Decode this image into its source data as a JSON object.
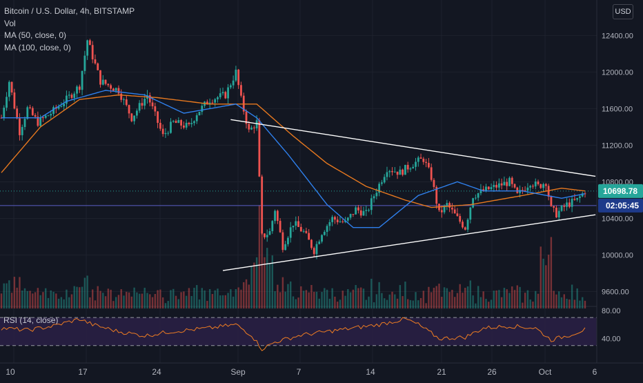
{
  "header": {
    "symbol_line": "Bitcoin / U.S. Dollar, 4h, BITSTAMP",
    "vol_label": "Vol",
    "ma50_label": "MA (50, close, 0)",
    "ma100_label": "MA (100, close, 0)",
    "currency_button": "USD"
  },
  "price_badges": {
    "last_price": "10698.78",
    "countdown": "02:05:45",
    "last_color": "#26a69a",
    "countdown_color": "#1e3a8a"
  },
  "rsi_label": "RSI (14, close)",
  "colors": {
    "up": "#26a69a",
    "down": "#ef5350",
    "ma50": "#2f80ed",
    "ma100": "#e8791f",
    "rsi_line": "#ef7d22",
    "rsi_band": "#2a2045",
    "trendline": "#ffffff"
  },
  "chart_data": {
    "type": "candlestick",
    "title": "Bitcoin / U.S. Dollar, 4h, BITSTAMP",
    "price_axis": {
      "ticks": [
        12400,
        12000,
        11600,
        11200,
        10800,
        10400,
        10000,
        9600
      ],
      "range": [
        9400,
        12750
      ],
      "labels": [
        "12400.00",
        "12000.00",
        "11600.00",
        "11200.00",
        "10800.00",
        "10400.00",
        "10000.00",
        "9600.00"
      ]
    },
    "time_axis_labels": [
      "10",
      "17",
      "24",
      "Sep",
      "7",
      "14",
      "21",
      "26",
      "Oct",
      "6"
    ],
    "keypoints": [
      {
        "t": 0,
        "p": 11500
      },
      {
        "t": 3,
        "p": 11900
      },
      {
        "t": 7,
        "p": 11350
      },
      {
        "t": 10,
        "p": 11600
      },
      {
        "t": 14,
        "p": 11450
      },
      {
        "t": 19,
        "p": 11550
      },
      {
        "t": 25,
        "p": 11700
      },
      {
        "t": 30,
        "p": 11850
      },
      {
        "t": 33,
        "p": 12350
      },
      {
        "t": 38,
        "p": 11900
      },
      {
        "t": 45,
        "p": 11800
      },
      {
        "t": 50,
        "p": 11500
      },
      {
        "t": 56,
        "p": 11750
      },
      {
        "t": 62,
        "p": 11300
      },
      {
        "t": 66,
        "p": 11450
      },
      {
        "t": 72,
        "p": 11400
      },
      {
        "t": 75,
        "p": 11550
      },
      {
        "t": 80,
        "p": 11700
      },
      {
        "t": 86,
        "p": 11750
      },
      {
        "t": 90,
        "p": 12000
      },
      {
        "t": 92,
        "p": 11700
      },
      {
        "t": 95,
        "p": 11350
      },
      {
        "t": 98,
        "p": 11450
      },
      {
        "t": 100,
        "p": 10200
      },
      {
        "t": 103,
        "p": 10250
      },
      {
        "t": 105,
        "p": 10500
      },
      {
        "t": 108,
        "p": 10100
      },
      {
        "t": 112,
        "p": 10350
      },
      {
        "t": 116,
        "p": 10250
      },
      {
        "t": 120,
        "p": 10050
      },
      {
        "t": 123,
        "p": 10250
      },
      {
        "t": 127,
        "p": 10400
      },
      {
        "t": 132,
        "p": 10350
      },
      {
        "t": 136,
        "p": 10500
      },
      {
        "t": 140,
        "p": 10450
      },
      {
        "t": 143,
        "p": 10650
      },
      {
        "t": 148,
        "p": 10950
      },
      {
        "t": 153,
        "p": 10900
      },
      {
        "t": 158,
        "p": 11000
      },
      {
        "t": 162,
        "p": 11050
      },
      {
        "t": 165,
        "p": 10850
      },
      {
        "t": 168,
        "p": 10450
      },
      {
        "t": 171,
        "p": 10550
      },
      {
        "t": 175,
        "p": 10400
      },
      {
        "t": 178,
        "p": 10300
      },
      {
        "t": 181,
        "p": 10650
      },
      {
        "t": 185,
        "p": 10700
      },
      {
        "t": 190,
        "p": 10750
      },
      {
        "t": 195,
        "p": 10800
      },
      {
        "t": 198,
        "p": 10650
      },
      {
        "t": 203,
        "p": 10800
      },
      {
        "t": 206,
        "p": 10750
      },
      {
        "t": 209,
        "p": 10800
      },
      {
        "t": 211,
        "p": 10500
      },
      {
        "t": 213,
        "p": 10450
      },
      {
        "t": 217,
        "p": 10550
      },
      {
        "t": 221,
        "p": 10600
      },
      {
        "t": 224,
        "p": 10700
      }
    ],
    "ma50_keypoints": [
      {
        "t": 0,
        "p": 11500
      },
      {
        "t": 15,
        "p": 11500
      },
      {
        "t": 25,
        "p": 11680
      },
      {
        "t": 40,
        "p": 11800
      },
      {
        "t": 55,
        "p": 11750
      },
      {
        "t": 70,
        "p": 11550
      },
      {
        "t": 90,
        "p": 11650
      },
      {
        "t": 98,
        "p": 11500
      },
      {
        "t": 110,
        "p": 11100
      },
      {
        "t": 125,
        "p": 10550
      },
      {
        "t": 135,
        "p": 10300
      },
      {
        "t": 145,
        "p": 10300
      },
      {
        "t": 160,
        "p": 10650
      },
      {
        "t": 175,
        "p": 10800
      },
      {
        "t": 185,
        "p": 10700
      },
      {
        "t": 200,
        "p": 10700
      },
      {
        "t": 215,
        "p": 10620
      },
      {
        "t": 224,
        "p": 10670
      }
    ],
    "ma100_keypoints": [
      {
        "t": 0,
        "p": 10900
      },
      {
        "t": 15,
        "p": 11400
      },
      {
        "t": 30,
        "p": 11700
      },
      {
        "t": 45,
        "p": 11750
      },
      {
        "t": 60,
        "p": 11720
      },
      {
        "t": 80,
        "p": 11650
      },
      {
        "t": 98,
        "p": 11650
      },
      {
        "t": 112,
        "p": 11300
      },
      {
        "t": 125,
        "p": 11000
      },
      {
        "t": 140,
        "p": 10750
      },
      {
        "t": 155,
        "p": 10600
      },
      {
        "t": 165,
        "p": 10520
      },
      {
        "t": 180,
        "p": 10550
      },
      {
        "t": 200,
        "p": 10650
      },
      {
        "t": 215,
        "p": 10730
      },
      {
        "t": 224,
        "p": 10700
      }
    ],
    "trendlines": [
      {
        "from": {
          "t": 88,
          "p": 11480
        },
        "to": {
          "t": 228,
          "p": 10860
        }
      },
      {
        "from": {
          "t": 85,
          "p": 9830
        },
        "to": {
          "t": 228,
          "p": 10440
        }
      }
    ],
    "horizontal_level": 10540,
    "last_price": 10698.78,
    "rsi": {
      "axis_ticks": [
        80,
        40
      ],
      "axis_labels": [
        "80.00",
        "40.00"
      ],
      "upper": 70,
      "lower": 30,
      "range": [
        15,
        82
      ],
      "keypoints": [
        {
          "t": 0,
          "v": 55
        },
        {
          "t": 10,
          "v": 52
        },
        {
          "t": 20,
          "v": 58
        },
        {
          "t": 30,
          "v": 68
        },
        {
          "t": 35,
          "v": 60
        },
        {
          "t": 45,
          "v": 50
        },
        {
          "t": 55,
          "v": 44
        },
        {
          "t": 65,
          "v": 50
        },
        {
          "t": 80,
          "v": 55
        },
        {
          "t": 90,
          "v": 60
        },
        {
          "t": 96,
          "v": 45
        },
        {
          "t": 100,
          "v": 25
        },
        {
          "t": 105,
          "v": 35
        },
        {
          "t": 115,
          "v": 45
        },
        {
          "t": 125,
          "v": 50
        },
        {
          "t": 135,
          "v": 55
        },
        {
          "t": 145,
          "v": 60
        },
        {
          "t": 155,
          "v": 68
        },
        {
          "t": 160,
          "v": 60
        },
        {
          "t": 168,
          "v": 40
        },
        {
          "t": 178,
          "v": 42
        },
        {
          "t": 185,
          "v": 55
        },
        {
          "t": 195,
          "v": 58
        },
        {
          "t": 205,
          "v": 55
        },
        {
          "t": 211,
          "v": 38
        },
        {
          "t": 218,
          "v": 45
        },
        {
          "t": 224,
          "v": 53
        }
      ]
    }
  }
}
